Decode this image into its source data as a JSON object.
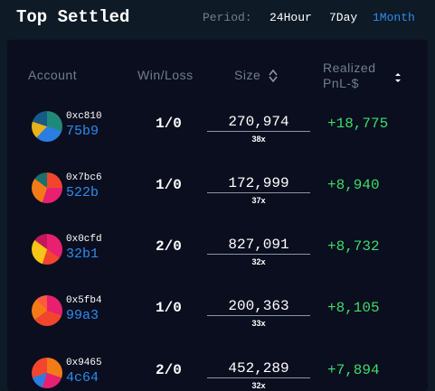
{
  "header": {
    "title": "Top Settled",
    "period_label": "Period:",
    "periods": [
      "24Hour",
      "7Day",
      "1Month"
    ]
  },
  "table": {
    "columns": [
      "Account",
      "Win/Loss",
      "Size",
      "Realized PnL-$"
    ],
    "rows": [
      {
        "account": "0xc810",
        "account_suffix": "75b9",
        "win_loss": "1/0",
        "size": "270,974",
        "leverage": "38x",
        "pnl": "+18,775"
      },
      {
        "account": "0x7bc6",
        "account_suffix": "522b",
        "win_loss": "1/0",
        "size": "172,999",
        "leverage": "37x",
        "pnl": "+8,940"
      },
      {
        "account": "0x0cfd",
        "account_suffix": "32b1",
        "win_loss": "2/0",
        "size": "827,091",
        "leverage": "32x",
        "pnl": "+8,732"
      },
      {
        "account": "0x5fb4",
        "account_suffix": "99a3",
        "win_loss": "1/0",
        "size": "200,363",
        "leverage": "33x",
        "pnl": "+8,105"
      },
      {
        "account": "0x9465",
        "account_suffix": "4c64",
        "win_loss": "2/0",
        "size": "452,289",
        "leverage": "32x",
        "pnl": "+7,894"
      }
    ]
  }
}
